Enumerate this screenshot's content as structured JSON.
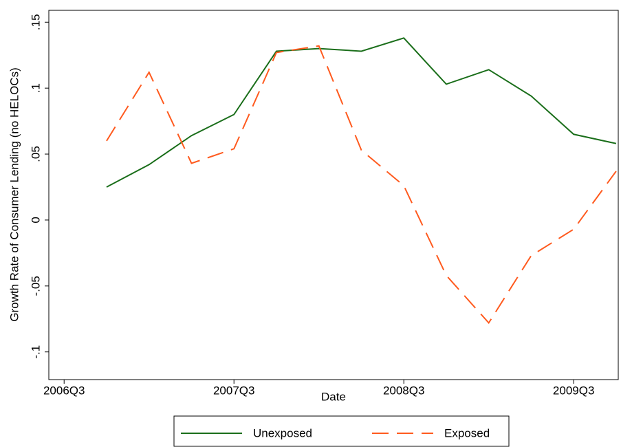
{
  "chart_data": {
    "type": "line",
    "x_label": "Date",
    "y_label": "Growth Rate of Consumer Lending (no HELOCs)",
    "x": [
      187,
      188,
      189,
      190,
      191,
      192,
      193,
      194,
      195,
      196,
      197,
      198,
      199
    ],
    "series": [
      {
        "name": "Unexposed",
        "color": "#1a6e1a",
        "dash": "solid",
        "values": [
          0.025,
          0.042,
          0.064,
          0.08,
          0.128,
          0.13,
          0.128,
          0.138,
          0.103,
          0.114,
          0.094,
          0.065,
          0.058
        ]
      },
      {
        "name": "Exposed",
        "color": "#ff5a1e",
        "dash": "dashed",
        "values": [
          0.06,
          0.112,
          0.043,
          0.054,
          0.127,
          0.132,
          0.053,
          0.026,
          -0.042,
          -0.078,
          -0.027,
          -0.007,
          0.037
        ]
      }
    ],
    "xlim": [
      185.64,
      199.05
    ],
    "xticks": [
      {
        "value": 186,
        "label": "2006Q3"
      },
      {
        "value": 190,
        "label": "2007Q3"
      },
      {
        "value": 194,
        "label": "2008Q3"
      },
      {
        "value": 198,
        "label": "2009Q3"
      }
    ],
    "ylim": [
      -0.121,
      0.159
    ],
    "yticks": [
      {
        "value": -0.1,
        "label": "-.1"
      },
      {
        "value": -0.05,
        "label": "-.05"
      },
      0,
      {
        "value": 0.05,
        "label": ".05"
      },
      {
        "value": 0.1,
        "label": ".1"
      },
      {
        "value": 0.15,
        "label": ".15"
      }
    ],
    "grid": false,
    "legend": "bottom"
  }
}
